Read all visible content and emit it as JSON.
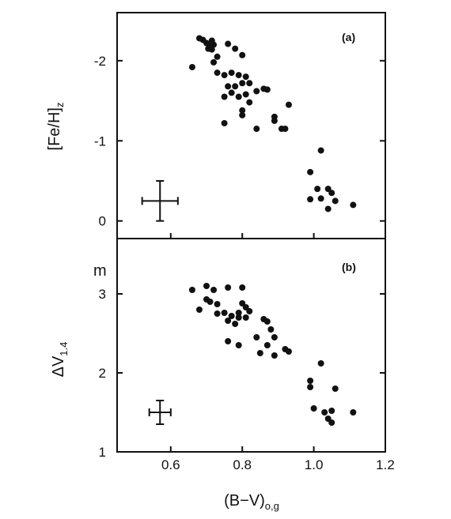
{
  "chart_data": [
    {
      "type": "scatter",
      "panel_label": "(a)",
      "xlabel": "(B−V)",
      "xlabel_sub": "o,g",
      "ylabel": "[Fe/H]",
      "ylabel_sub": "z",
      "xlim": [
        0.45,
        1.2
      ],
      "ylim": [
        0.22,
        -2.6
      ],
      "y_inverted": true,
      "x_ticks": [
        0.6,
        0.8,
        1.0,
        1.2
      ],
      "x_tick_labels": [
        "0.6",
        "0.8",
        "1.0",
        "1.2"
      ],
      "y_ticks": [
        -2,
        -1,
        0
      ],
      "y_tick_labels": [
        "-2",
        "-1",
        "0"
      ],
      "grid": false,
      "points": [
        [
          0.66,
          -1.92
        ],
        [
          0.68,
          -2.28
        ],
        [
          0.69,
          -2.26
        ],
        [
          0.7,
          -2.22
        ],
        [
          0.71,
          -2.2
        ],
        [
          0.715,
          -2.25
        ],
        [
          0.72,
          -2.2
        ],
        [
          0.705,
          -2.15
        ],
        [
          0.715,
          -2.14
        ],
        [
          0.73,
          -2.05
        ],
        [
          0.72,
          -1.98
        ],
        [
          0.73,
          -1.85
        ],
        [
          0.75,
          -1.82
        ],
        [
          0.76,
          -2.21
        ],
        [
          0.78,
          -2.15
        ],
        [
          0.8,
          -2.07
        ],
        [
          0.77,
          -1.85
        ],
        [
          0.79,
          -1.82
        ],
        [
          0.81,
          -1.8
        ],
        [
          0.8,
          -1.72
        ],
        [
          0.78,
          -1.68
        ],
        [
          0.82,
          -1.72
        ],
        [
          0.77,
          -1.6
        ],
        [
          0.79,
          -1.55
        ],
        [
          0.81,
          -1.58
        ],
        [
          0.75,
          -1.55
        ],
        [
          0.76,
          -1.68
        ],
        [
          0.84,
          -1.62
        ],
        [
          0.86,
          -1.65
        ],
        [
          0.87,
          -1.64
        ],
        [
          0.82,
          -1.48
        ],
        [
          0.8,
          -1.38
        ],
        [
          0.8,
          -1.32
        ],
        [
          0.75,
          -1.22
        ],
        [
          0.84,
          -1.15
        ],
        [
          0.89,
          -1.3
        ],
        [
          0.89,
          -1.25
        ],
        [
          0.91,
          -1.15
        ],
        [
          0.93,
          -1.45
        ],
        [
          0.92,
          -1.15
        ],
        [
          1.02,
          -0.88
        ],
        [
          0.99,
          -0.61
        ],
        [
          1.01,
          -0.4
        ],
        [
          1.04,
          -0.4
        ],
        [
          1.05,
          -0.35
        ],
        [
          0.99,
          -0.27
        ],
        [
          1.02,
          -0.28
        ],
        [
          1.06,
          -0.25
        ],
        [
          1.04,
          -0.15
        ],
        [
          1.11,
          -0.2
        ]
      ],
      "error_bar": {
        "x": 0.57,
        "y": -0.25,
        "xerr": 0.05,
        "yerr": 0.25
      }
    },
    {
      "type": "scatter",
      "panel_label": "(b)",
      "unit_label": "m",
      "xlabel": "(B−V)",
      "xlabel_sub": "o,g",
      "ylabel": "ΔV",
      "ylabel_sub": "1.4",
      "xlim": [
        0.45,
        1.2
      ],
      "ylim": [
        1.0,
        3.7
      ],
      "x_ticks": [
        0.6,
        0.8,
        1.0,
        1.2
      ],
      "x_tick_labels": [
        "0.6",
        "0.8",
        "1.0",
        "1.2"
      ],
      "y_ticks": [
        1,
        2,
        3
      ],
      "y_tick_labels": [
        "1",
        "2",
        "3"
      ],
      "grid": false,
      "points": [
        [
          0.66,
          3.05
        ],
        [
          0.7,
          3.1
        ],
        [
          0.72,
          3.05
        ],
        [
          0.76,
          3.08
        ],
        [
          0.8,
          3.08
        ],
        [
          0.7,
          2.93
        ],
        [
          0.71,
          2.9
        ],
        [
          0.73,
          2.87
        ],
        [
          0.68,
          2.8
        ],
        [
          0.73,
          2.75
        ],
        [
          0.75,
          2.76
        ],
        [
          0.77,
          2.72
        ],
        [
          0.79,
          2.76
        ],
        [
          0.8,
          2.88
        ],
        [
          0.81,
          2.83
        ],
        [
          0.82,
          2.78
        ],
        [
          0.76,
          2.66
        ],
        [
          0.78,
          2.62
        ],
        [
          0.79,
          2.7
        ],
        [
          0.81,
          2.7
        ],
        [
          0.86,
          2.68
        ],
        [
          0.87,
          2.65
        ],
        [
          0.88,
          2.55
        ],
        [
          0.84,
          2.45
        ],
        [
          0.76,
          2.4
        ],
        [
          0.79,
          2.35
        ],
        [
          0.89,
          2.45
        ],
        [
          0.87,
          2.35
        ],
        [
          0.92,
          2.3
        ],
        [
          0.93,
          2.27
        ],
        [
          0.85,
          2.25
        ],
        [
          0.89,
          2.22
        ],
        [
          1.02,
          2.12
        ],
        [
          0.99,
          1.9
        ],
        [
          0.99,
          1.82
        ],
        [
          1.06,
          1.8
        ],
        [
          1.0,
          1.55
        ],
        [
          1.03,
          1.5
        ],
        [
          1.05,
          1.52
        ],
        [
          1.04,
          1.42
        ],
        [
          1.05,
          1.37
        ],
        [
          1.11,
          1.5
        ]
      ],
      "error_bar": {
        "x": 0.57,
        "y": 1.5,
        "xerr": 0.03,
        "yerr": 0.15
      }
    }
  ]
}
